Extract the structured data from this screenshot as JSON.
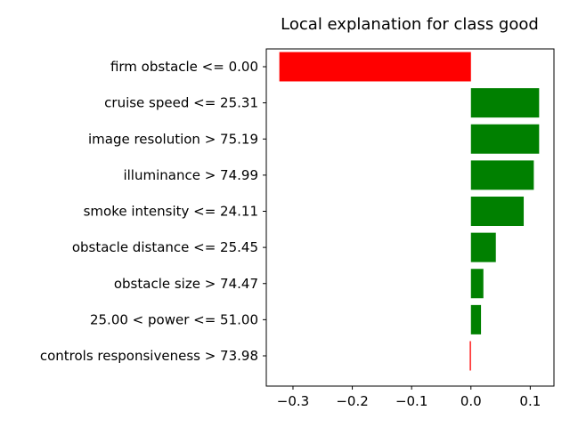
{
  "chart_data": {
    "type": "bar",
    "orientation": "horizontal",
    "title": "Local explanation for class good",
    "xlabel": "",
    "ylabel": "",
    "categories": [
      "firm obstacle <= 0.00",
      "cruise speed <= 25.31",
      "image resolution > 75.19",
      "illuminance > 74.99",
      "smoke intensity <= 24.11",
      "obstacle distance <= 25.45",
      "obstacle size > 74.47",
      "25.00 < power <= 51.00",
      "controls responsiveness > 73.98"
    ],
    "values": [
      -0.323,
      0.115,
      0.115,
      0.106,
      0.089,
      0.042,
      0.021,
      0.017,
      -0.002
    ],
    "xlim": [
      -0.345,
      0.14
    ],
    "xticks": [
      -0.3,
      -0.2,
      -0.1,
      0.0,
      0.1
    ],
    "xtick_labels": [
      "−0.3",
      "−0.2",
      "−0.1",
      "0.0",
      "0.1"
    ],
    "colors": {
      "positive": "#008000",
      "negative": "#ff0000"
    },
    "grid": false,
    "legend": "none"
  }
}
